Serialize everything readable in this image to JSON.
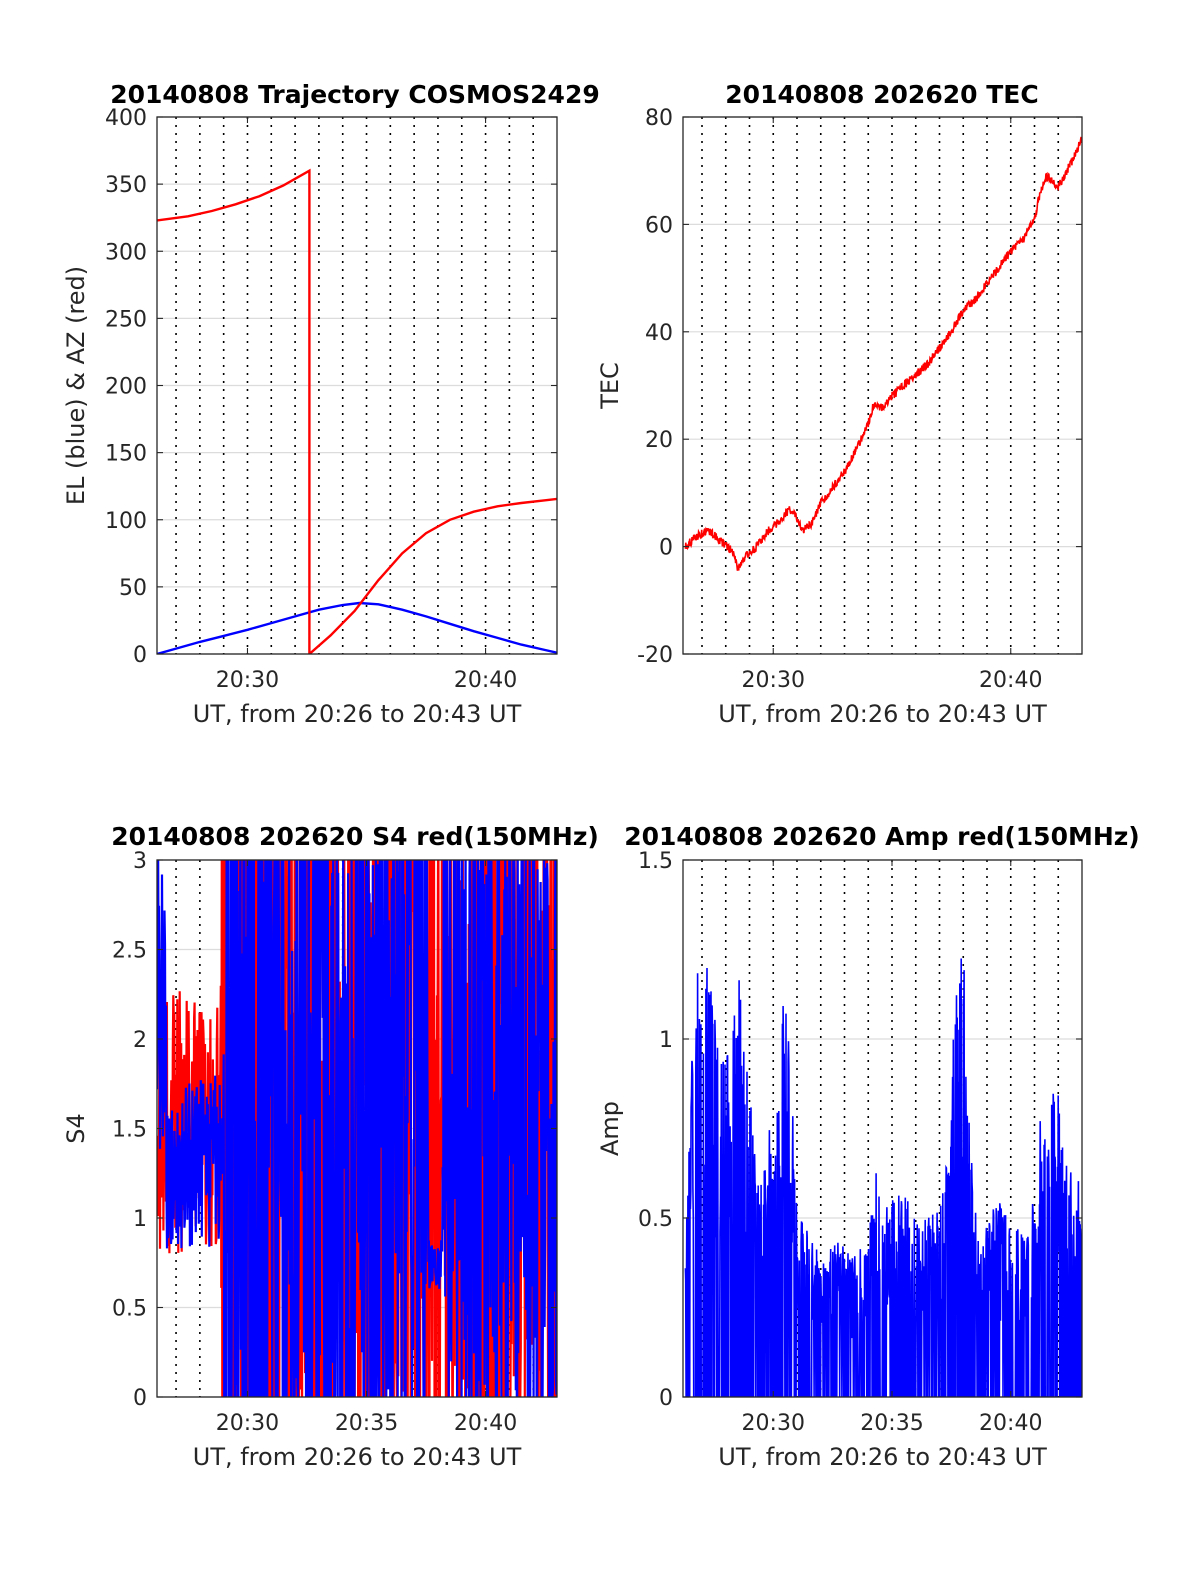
{
  "charts": [
    {
      "id": "trajectory",
      "type": "line",
      "title": "20140808 Trajectory COSMOS2429",
      "xlabel": "UT, from 20:26 to 20:43 UT",
      "ylabel": "EL (blue) & AZ (red)",
      "xlim": [
        26.2,
        43.0
      ],
      "ylim": [
        0,
        400
      ],
      "yticks": [
        0,
        50,
        100,
        150,
        200,
        250,
        300,
        350,
        400
      ],
      "xticks": [
        {
          "v": 30,
          "label": "20:30"
        },
        {
          "v": 40,
          "label": "20:40"
        }
      ],
      "series": [
        {
          "color": "#0000ff",
          "kind": "smooth",
          "x": [
            26.2,
            27.0,
            28.0,
            29.0,
            30.0,
            31.0,
            32.0,
            33.0,
            34.0,
            34.7,
            35.5,
            36.5,
            37.5,
            38.5,
            39.5,
            40.5,
            41.5,
            42.5,
            43.0
          ],
          "y": [
            0,
            4,
            9,
            13.5,
            18,
            23,
            28,
            33,
            36.5,
            38,
            37,
            33,
            28,
            22.5,
            17,
            12,
            7,
            3,
            1
          ]
        },
        {
          "color": "#ff0000",
          "kind": "smooth",
          "x": [
            26.2,
            27.5,
            28.5,
            29.5,
            30.5,
            31.5,
            32.0,
            32.6,
            32.6,
            32.6,
            33.5,
            34.5,
            35.5,
            36.5,
            37.5,
            38.5,
            39.5,
            40.5,
            41.5,
            42.5,
            43.0
          ],
          "y": [
            323,
            326,
            330,
            335,
            341,
            349,
            354,
            360,
            360,
            0,
            14,
            32,
            55,
            75,
            90,
            100,
            106,
            110,
            112.5,
            114.5,
            115.5
          ]
        }
      ]
    },
    {
      "id": "tec",
      "type": "line",
      "title": "20140808 202620 TEC",
      "xlabel": "UT, from 20:26 to 20:43 UT",
      "ylabel": "TEC",
      "xlim": [
        26.2,
        43.0
      ],
      "ylim": [
        -20,
        80
      ],
      "yticks": [
        -20,
        0,
        20,
        40,
        60,
        80
      ],
      "xticks": [
        {
          "v": 30,
          "label": "20:30"
        },
        {
          "v": 40,
          "label": "20:40"
        }
      ],
      "series": [
        {
          "color": "#ff0000",
          "kind": "noisy",
          "noise": 0.8,
          "x": [
            26.3,
            26.8,
            27.3,
            27.8,
            28.3,
            28.5,
            28.8,
            29.3,
            29.8,
            30.3,
            30.7,
            30.9,
            31.2,
            31.6,
            32.0,
            32.5,
            33.0,
            33.5,
            34.0,
            34.2,
            34.6,
            35.0,
            35.5,
            36.0,
            36.5,
            37.0,
            37.5,
            38.0,
            38.5,
            39.0,
            39.5,
            40.0,
            40.5,
            41.0,
            41.2,
            41.5,
            42.0,
            42.5,
            43.0
          ],
          "y": [
            0,
            2,
            3,
            1,
            -1,
            -4,
            -2,
            0,
            3,
            5,
            7,
            6,
            3,
            4,
            8,
            11,
            14,
            18,
            23,
            26,
            26,
            28,
            30,
            32,
            34,
            37,
            40,
            44,
            46,
            49,
            52,
            55,
            57,
            61,
            65,
            69,
            67,
            71,
            76
          ]
        }
      ]
    },
    {
      "id": "s4",
      "type": "line",
      "title": "20140808 202620 S4 red(150MHz)",
      "xlabel": "UT, from 20:26 to 20:43 UT",
      "ylabel": "S4",
      "xlim": [
        26.2,
        43.0
      ],
      "ylim": [
        0,
        3
      ],
      "yticks": [
        0,
        0.5,
        1,
        1.5,
        2,
        2.5,
        3
      ],
      "yticklabels": [
        "0",
        "0.5",
        "1",
        "1.5",
        "2",
        "2.5",
        "3"
      ],
      "xticks": [
        {
          "v": 30,
          "label": "20:30"
        },
        {
          "v": 35,
          "label": "20:35"
        },
        {
          "v": 40,
          "label": "20:40"
        }
      ],
      "series": [
        {
          "color": "#ff0000",
          "kind": "spiky",
          "segments": [
            {
              "x0": 26.2,
              "x1": 28.9,
              "lo": 0.8,
              "hi": 2.3,
              "p": 0
            },
            {
              "x0": 28.9,
              "x1": 38.0,
              "lo": 0.0,
              "hi": 3.0,
              "p": 0.5
            },
            {
              "x0": 38.0,
              "x1": 43.0,
              "lo": 0.0,
              "hi": 3.0,
              "p": 0.45
            }
          ]
        },
        {
          "color": "#0000ff",
          "kind": "spiky",
          "segments": [
            {
              "x0": 26.2,
              "x1": 26.6,
              "lo": 1.3,
              "hi": 3.0,
              "p": 0.1
            },
            {
              "x0": 26.6,
              "x1": 29.0,
              "lo": 0.8,
              "hi": 1.8,
              "p": 0
            },
            {
              "x0": 29.0,
              "x1": 37.6,
              "lo": 0.0,
              "hi": 3.0,
              "p": 0.5
            },
            {
              "x0": 37.6,
              "x1": 38.2,
              "lo": 0.6,
              "hi": 0.9,
              "p": 0
            },
            {
              "x0": 38.2,
              "x1": 43.0,
              "lo": 0.0,
              "hi": 3.0,
              "p": 0.35
            }
          ]
        }
      ]
    },
    {
      "id": "amp",
      "type": "line",
      "title": "20140808 202620 Amp red(150MHz)",
      "xlabel": "UT, from 20:26 to 20:43 UT",
      "ylabel": "Amp",
      "xlim": [
        26.2,
        43.0
      ],
      "ylim": [
        0,
        1.5
      ],
      "yticks": [
        0,
        0.5,
        1,
        1.5
      ],
      "yticklabels": [
        "0",
        "0.5",
        "1",
        "1.5"
      ],
      "xticks": [
        {
          "v": 30,
          "label": "20:30"
        },
        {
          "v": 35,
          "label": "20:35"
        },
        {
          "v": 40,
          "label": "20:40"
        }
      ],
      "series": [
        {
          "color": "#0000ff",
          "kind": "envelope",
          "envelope": {
            "x": [
              26.3,
              26.5,
              26.8,
              27.0,
              27.3,
              27.6,
              27.9,
              28.3,
              28.6,
              28.9,
              29.2,
              29.5,
              29.8,
              30.0,
              30.3,
              30.6,
              31.0,
              31.5,
              32.0,
              32.5,
              33.0,
              33.5,
              34.0,
              34.3,
              34.6,
              35.0,
              35.5,
              36.0,
              36.5,
              37.0,
              37.4,
              37.7,
              37.9,
              38.1,
              38.3,
              38.6,
              39.0,
              39.5,
              40.0,
              40.5,
              41.0,
              41.3,
              41.6,
              41.9,
              42.2,
              42.5,
              43.0
            ],
            "y": [
              0.4,
              0.9,
              1.2,
              1.0,
              1.3,
              1.05,
              1.0,
              1.1,
              1.25,
              1.0,
              0.7,
              0.6,
              0.8,
              0.65,
              1.05,
              1.2,
              0.55,
              0.45,
              0.4,
              0.42,
              0.45,
              0.4,
              0.45,
              0.66,
              0.55,
              0.55,
              0.58,
              0.5,
              0.5,
              0.55,
              0.7,
              1.2,
              1.38,
              1.2,
              0.7,
              0.5,
              0.5,
              0.55,
              0.5,
              0.45,
              0.6,
              0.85,
              0.75,
              0.95,
              0.7,
              0.65,
              0.6
            ]
          }
        }
      ]
    }
  ]
}
